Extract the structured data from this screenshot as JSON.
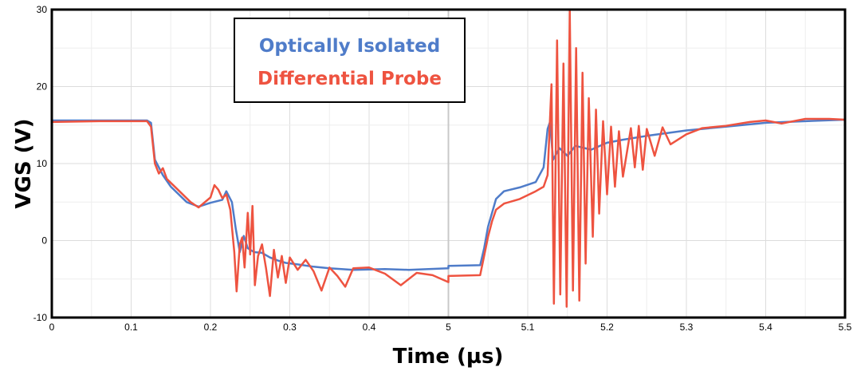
{
  "chart_data": {
    "type": "line",
    "xlabel": "Time (µs)",
    "ylabel": "VGS (V)",
    "ylim": [
      -10,
      30
    ],
    "grid": true,
    "legend_position": "top-left",
    "x_tick_labels": [
      "0",
      "0.1",
      "0.2",
      "0.3",
      "0.4",
      "5",
      "5.1",
      "5.2",
      "5.3",
      "5.4",
      "5.5"
    ],
    "y_ticks": [
      -10,
      0,
      10,
      20,
      30
    ],
    "y_tick_labels": [
      "-10",
      "0",
      "10",
      "20",
      "30"
    ],
    "series": [
      {
        "name": "Optically Isolated",
        "color": "#4f7cc9",
        "points": [
          [
            0.0,
            15.6
          ],
          [
            0.06,
            15.6
          ],
          [
            0.12,
            15.6
          ],
          [
            0.125,
            15.3
          ],
          [
            0.13,
            10.5
          ],
          [
            0.14,
            8.5
          ],
          [
            0.15,
            7.0
          ],
          [
            0.17,
            5.0
          ],
          [
            0.185,
            4.4
          ],
          [
            0.2,
            4.9
          ],
          [
            0.215,
            5.3
          ],
          [
            0.22,
            6.4
          ],
          [
            0.227,
            5.0
          ],
          [
            0.232,
            1.5
          ],
          [
            0.237,
            -1.5
          ],
          [
            0.242,
            0.6
          ],
          [
            0.247,
            -1.0
          ],
          [
            0.255,
            -1.5
          ],
          [
            0.265,
            -1.6
          ],
          [
            0.275,
            -2.2
          ],
          [
            0.285,
            -2.6
          ],
          [
            0.295,
            -2.9
          ],
          [
            0.31,
            -3.1
          ],
          [
            0.33,
            -3.4
          ],
          [
            0.35,
            -3.6
          ],
          [
            0.38,
            -3.8
          ],
          [
            0.42,
            -3.7
          ],
          [
            0.45,
            -3.8
          ],
          [
            0.5,
            -3.6
          ],
          [
            5.0,
            -3.3
          ],
          [
            5.04,
            -3.2
          ],
          [
            5.045,
            -1.0
          ],
          [
            5.05,
            1.8
          ],
          [
            5.055,
            3.6
          ],
          [
            5.06,
            5.4
          ],
          [
            5.07,
            6.4
          ],
          [
            5.09,
            6.9
          ],
          [
            5.11,
            7.6
          ],
          [
            5.12,
            9.5
          ],
          [
            5.125,
            14.5
          ],
          [
            5.128,
            15.4
          ],
          [
            5.132,
            10.5
          ],
          [
            5.14,
            12.0
          ],
          [
            5.15,
            11.0
          ],
          [
            5.16,
            12.3
          ],
          [
            5.18,
            11.8
          ],
          [
            5.2,
            12.7
          ],
          [
            5.22,
            13.1
          ],
          [
            5.25,
            13.6
          ],
          [
            5.3,
            14.3
          ],
          [
            5.35,
            14.8
          ],
          [
            5.4,
            15.3
          ],
          [
            5.45,
            15.5
          ],
          [
            5.5,
            15.7
          ]
        ]
      },
      {
        "name": "Differential Probe",
        "color": "#ee5340",
        "points": [
          [
            0.0,
            15.4
          ],
          [
            0.06,
            15.5
          ],
          [
            0.12,
            15.5
          ],
          [
            0.125,
            14.8
          ],
          [
            0.13,
            10.0
          ],
          [
            0.135,
            8.7
          ],
          [
            0.14,
            9.4
          ],
          [
            0.145,
            8.0
          ],
          [
            0.16,
            6.5
          ],
          [
            0.175,
            5.0
          ],
          [
            0.185,
            4.3
          ],
          [
            0.2,
            5.6
          ],
          [
            0.205,
            7.2
          ],
          [
            0.21,
            6.6
          ],
          [
            0.215,
            5.5
          ],
          [
            0.22,
            6.0
          ],
          [
            0.225,
            4.0
          ],
          [
            0.23,
            -1.5
          ],
          [
            0.233,
            -6.6
          ],
          [
            0.237,
            -0.5
          ],
          [
            0.24,
            0.4
          ],
          [
            0.243,
            -3.5
          ],
          [
            0.247,
            3.6
          ],
          [
            0.25,
            -1.8
          ],
          [
            0.253,
            4.5
          ],
          [
            0.256,
            -5.8
          ],
          [
            0.26,
            -2.0
          ],
          [
            0.265,
            -0.5
          ],
          [
            0.27,
            -3.6
          ],
          [
            0.275,
            -7.2
          ],
          [
            0.28,
            -1.2
          ],
          [
            0.285,
            -4.8
          ],
          [
            0.29,
            -2.0
          ],
          [
            0.295,
            -5.5
          ],
          [
            0.3,
            -2.2
          ],
          [
            0.31,
            -3.8
          ],
          [
            0.32,
            -2.5
          ],
          [
            0.33,
            -4.0
          ],
          [
            0.34,
            -6.5
          ],
          [
            0.35,
            -3.5
          ],
          [
            0.36,
            -4.6
          ],
          [
            0.37,
            -6.0
          ],
          [
            0.38,
            -3.6
          ],
          [
            0.4,
            -3.5
          ],
          [
            0.42,
            -4.3
          ],
          [
            0.44,
            -5.8
          ],
          [
            0.46,
            -4.2
          ],
          [
            0.48,
            -4.5
          ],
          [
            0.5,
            -5.4
          ],
          [
            5.0,
            -4.6
          ],
          [
            5.04,
            -4.5
          ],
          [
            5.045,
            -2.0
          ],
          [
            5.05,
            0.5
          ],
          [
            5.055,
            2.5
          ],
          [
            5.06,
            4.0
          ],
          [
            5.07,
            4.8
          ],
          [
            5.09,
            5.4
          ],
          [
            5.11,
            6.4
          ],
          [
            5.12,
            7.0
          ],
          [
            5.125,
            8.5
          ],
          [
            5.13,
            20.3
          ],
          [
            5.133,
            -8.2
          ],
          [
            5.137,
            26.0
          ],
          [
            5.141,
            -7.0
          ],
          [
            5.145,
            23.0
          ],
          [
            5.149,
            -8.6
          ],
          [
            5.153,
            30.0
          ],
          [
            5.157,
            -6.5
          ],
          [
            5.161,
            25.0
          ],
          [
            5.165,
            -7.8
          ],
          [
            5.169,
            21.8
          ],
          [
            5.173,
            -3.0
          ],
          [
            5.177,
            18.5
          ],
          [
            5.182,
            0.5
          ],
          [
            5.186,
            17.0
          ],
          [
            5.19,
            3.5
          ],
          [
            5.195,
            15.5
          ],
          [
            5.2,
            6.0
          ],
          [
            5.205,
            14.8
          ],
          [
            5.21,
            7.0
          ],
          [
            5.215,
            14.2
          ],
          [
            5.22,
            8.3
          ],
          [
            5.23,
            14.6
          ],
          [
            5.235,
            9.5
          ],
          [
            5.24,
            14.9
          ],
          [
            5.245,
            9.2
          ],
          [
            5.25,
            14.5
          ],
          [
            5.26,
            11.0
          ],
          [
            5.27,
            14.7
          ],
          [
            5.28,
            12.5
          ],
          [
            5.3,
            13.8
          ],
          [
            5.32,
            14.6
          ],
          [
            5.35,
            14.9
          ],
          [
            5.38,
            15.4
          ],
          [
            5.4,
            15.6
          ],
          [
            5.42,
            15.2
          ],
          [
            5.45,
            15.8
          ],
          [
            5.48,
            15.8
          ],
          [
            5.5,
            15.7
          ]
        ]
      }
    ]
  }
}
